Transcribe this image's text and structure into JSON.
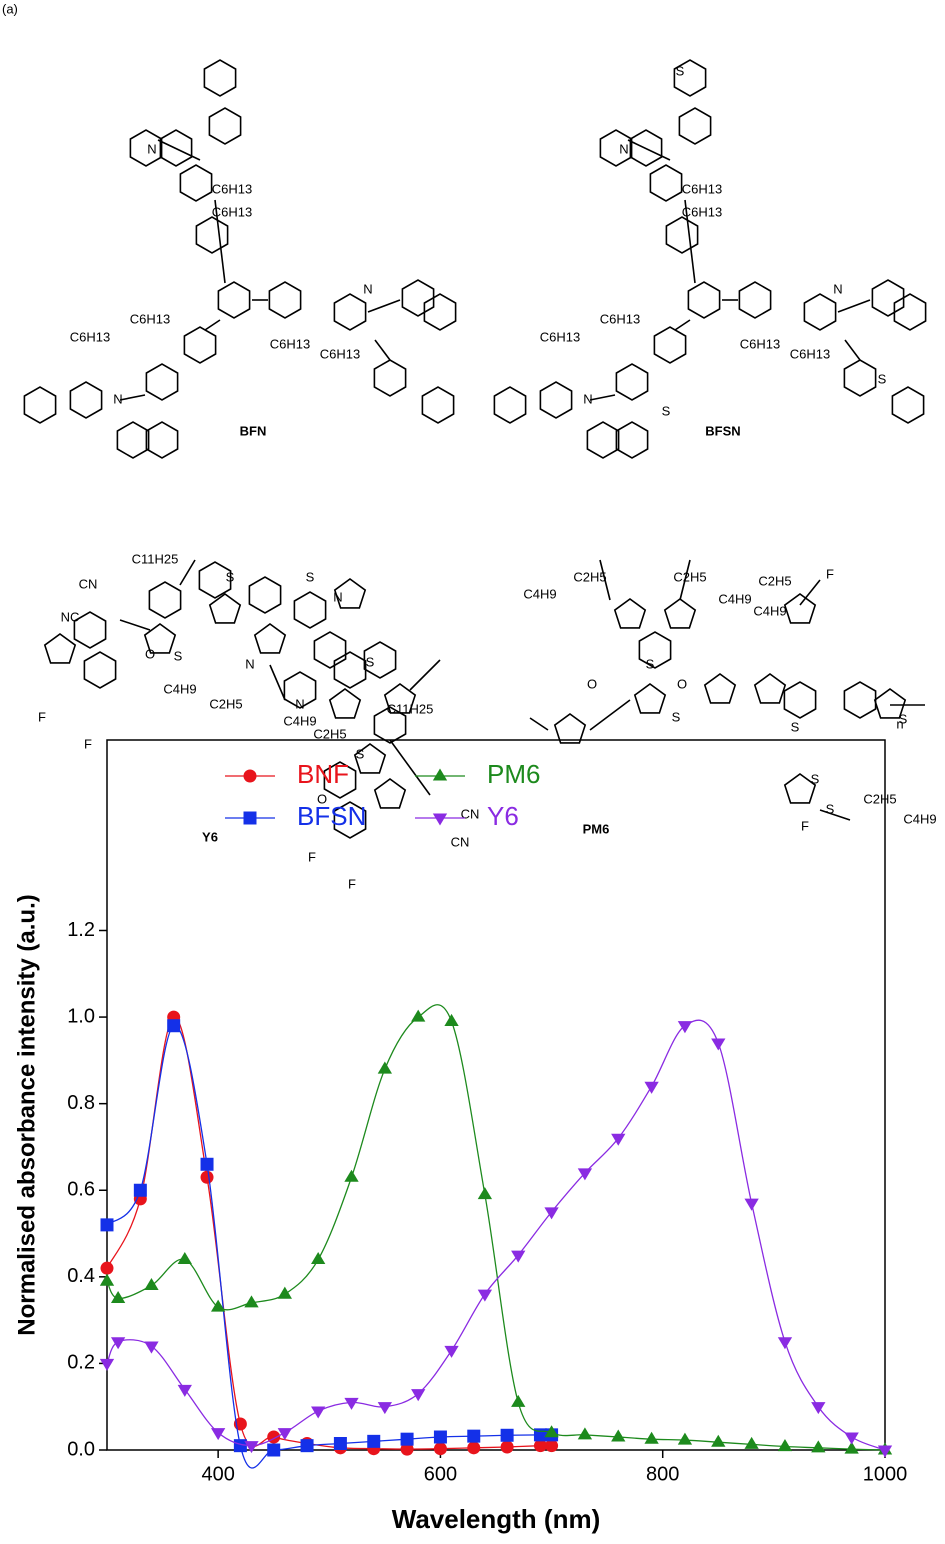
{
  "panel_label": "(a)",
  "structures": [
    {
      "name": "BFN",
      "labels": [
        "N",
        "N",
        "N",
        "C6H13",
        "C6H13",
        "C6H13",
        "C6H13",
        "C6H13",
        "C6H13"
      ]
    },
    {
      "name": "BFSN",
      "labels": [
        "S",
        "N",
        "N",
        "N",
        "S",
        "S",
        "C6H13",
        "C6H13",
        "C6H13",
        "C6H13",
        "C6H13",
        "C6H13"
      ]
    },
    {
      "name": "Y6",
      "labels": [
        "CN",
        "NC",
        "C11H25",
        "S",
        "S",
        "N",
        "S",
        "N",
        "O",
        "F",
        "F",
        "N",
        "S",
        "C4H9",
        "C2H5",
        "C11H25",
        "C4H9",
        "C2H5",
        "S",
        "O",
        "CN",
        "CN",
        "F",
        "F"
      ]
    },
    {
      "name": "PM6",
      "labels": [
        "C4H9",
        "C2H5",
        "C2H5",
        "C4H9",
        "C2H5",
        "C4H9",
        "F",
        "S",
        "O",
        "O",
        "S",
        "S",
        "S",
        "S",
        "n",
        "S",
        "F",
        "C2H5",
        "C4H9"
      ]
    }
  ],
  "chart_data": {
    "type": "line",
    "xlabel": "Wavelength (nm)",
    "ylabel": "Normalised absorbance intensity (a.u.)",
    "xlim": [
      300,
      1000
    ],
    "ylim": [
      0,
      1.64
    ],
    "xticks": [
      400,
      600,
      800,
      1000
    ],
    "yticks": [
      {
        "value": 0,
        "label": "0.0"
      },
      0.2,
      0.4,
      0.6,
      0.8,
      {
        "value": 1,
        "label": "1.0"
      },
      1.2
    ],
    "series": [
      {
        "name": "BNF",
        "color": "#e8141c",
        "marker": "circle",
        "x": [
          300,
          330,
          360,
          390,
          420,
          450,
          480,
          510,
          540,
          570,
          600,
          630,
          660,
          690,
          700
        ],
        "values": [
          0.42,
          0.58,
          1.0,
          0.63,
          0.06,
          0.03,
          0.015,
          0.005,
          0.003,
          0.002,
          0.003,
          0.005,
          0.007,
          0.01,
          0.01
        ]
      },
      {
        "name": "BFSN",
        "color": "#1430e8",
        "marker": "square",
        "x": [
          300,
          330,
          360,
          390,
          420,
          450,
          480,
          510,
          540,
          570,
          600,
          630,
          660,
          690,
          700
        ],
        "values": [
          0.52,
          0.6,
          0.98,
          0.66,
          0.01,
          0.0,
          0.01,
          0.015,
          0.02,
          0.025,
          0.03,
          0.032,
          0.034,
          0.035,
          0.035
        ]
      },
      {
        "name": "PM6",
        "color": "#1d8a1d",
        "marker": "triangle-up",
        "x": [
          300,
          310,
          340,
          370,
          400,
          430,
          460,
          490,
          520,
          550,
          580,
          610,
          640,
          670,
          700,
          730,
          760,
          790,
          820,
          850,
          880,
          910,
          940,
          970,
          1000
        ],
        "values": [
          0.39,
          0.35,
          0.38,
          0.44,
          0.33,
          0.34,
          0.36,
          0.44,
          0.63,
          0.88,
          1.0,
          0.99,
          0.59,
          0.11,
          0.04,
          0.035,
          0.03,
          0.025,
          0.023,
          0.018,
          0.013,
          0.008,
          0.005,
          0.002,
          0.0
        ]
      },
      {
        "name": "Y6",
        "color": "#8a2be2",
        "marker": "triangle-down",
        "x": [
          300,
          310,
          340,
          370,
          400,
          430,
          460,
          490,
          520,
          550,
          580,
          610,
          640,
          670,
          700,
          730,
          760,
          790,
          820,
          850,
          880,
          910,
          940,
          970,
          1000
        ],
        "values": [
          0.2,
          0.25,
          0.24,
          0.14,
          0.04,
          0.01,
          0.04,
          0.09,
          0.11,
          0.1,
          0.13,
          0.23,
          0.36,
          0.45,
          0.55,
          0.64,
          0.72,
          0.84,
          0.98,
          0.94,
          0.57,
          0.25,
          0.1,
          0.03,
          0.0
        ]
      }
    ]
  }
}
